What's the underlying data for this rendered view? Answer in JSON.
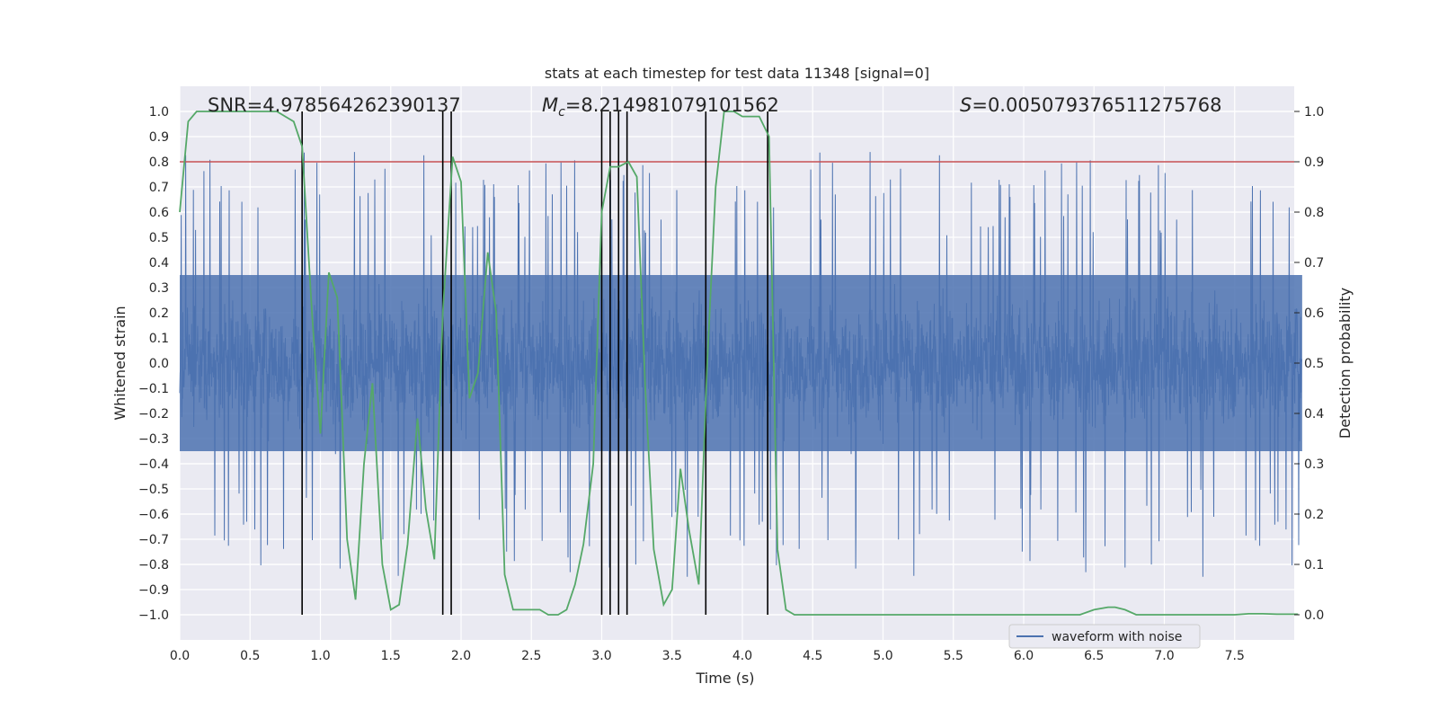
{
  "chart_data": {
    "type": "line",
    "title": "stats at each timestep for test data 11348 [signal=0]",
    "xlabel": "Time (s)",
    "ylabel_left": "Whitened strain",
    "ylabel_right": "Detection probability",
    "xlim": [
      0.0,
      8.0
    ],
    "ylim_left": [
      -1.1,
      1.1
    ],
    "ylim_right": [
      -0.05,
      1.05
    ],
    "x_ticks": [
      "0.0",
      "0.5",
      "1.0",
      "1.5",
      "2.0",
      "2.5",
      "3.0",
      "3.5",
      "4.0",
      "4.5",
      "5.0",
      "5.5",
      "6.0",
      "6.5",
      "7.0",
      "7.5"
    ],
    "y_left_ticks": [
      "1.0",
      "0.9",
      "0.8",
      "0.7",
      "0.6",
      "0.5",
      "0.4",
      "0.3",
      "0.2",
      "0.1",
      "0.0",
      "−0.1",
      "−0.2",
      "−0.3",
      "−0.4",
      "−0.5",
      "−0.6",
      "−0.7",
      "−0.8",
      "−0.9",
      "−1.0"
    ],
    "y_right_ticks": [
      "1.0",
      "0.9",
      "0.8",
      "0.7",
      "0.6",
      "0.5",
      "0.4",
      "0.3",
      "0.2",
      "0.1",
      "0.0"
    ],
    "annotations": {
      "snr": "SNR=4.978564262390137",
      "mc_symbol": "M",
      "mc_sub": "c",
      "mc_value": "=8.214981079101562",
      "s_symbol": "S",
      "s_value": "=0.005079376511275768"
    },
    "threshold": {
      "value": 0.9,
      "axis": "right",
      "color": "#c44e52"
    },
    "vertical_lines": [
      0.87,
      1.87,
      1.93,
      3.0,
      3.06,
      3.12,
      3.18,
      3.74,
      4.18
    ],
    "series": [
      {
        "name": "waveform with noise",
        "axis": "left",
        "color": "#4c72b0",
        "kind": "noise",
        "base_envelope": 0.35,
        "n_samples": 3200
      },
      {
        "name": "detection probability",
        "axis": "right",
        "color": "#55a868",
        "x": [
          0.0,
          0.06,
          0.12,
          0.19,
          0.25,
          0.31,
          0.37,
          0.44,
          0.5,
          0.56,
          0.62,
          0.69,
          0.75,
          0.81,
          0.87,
          0.94,
          1.0,
          1.06,
          1.12,
          1.19,
          1.25,
          1.31,
          1.37,
          1.44,
          1.5,
          1.56,
          1.62,
          1.69,
          1.75,
          1.81,
          1.87,
          1.94,
          2.0,
          2.06,
          2.12,
          2.19,
          2.25,
          2.31,
          2.37,
          2.44,
          2.5,
          2.56,
          2.62,
          2.69,
          2.75,
          2.81,
          2.87,
          2.94,
          3.0,
          3.06,
          3.12,
          3.19,
          3.25,
          3.31,
          3.37,
          3.44,
          3.5,
          3.56,
          3.62,
          3.69,
          3.75,
          3.81,
          3.87,
          3.94,
          4.0,
          4.06,
          4.12,
          4.19,
          4.25,
          4.31,
          4.37,
          4.5,
          4.75,
          5.0,
          5.25,
          5.5,
          5.75,
          6.0,
          6.25,
          6.4,
          6.5,
          6.6,
          6.65,
          6.72,
          6.8,
          6.9,
          7.0,
          7.25,
          7.5,
          7.6,
          7.7,
          7.8,
          7.95
        ],
        "values": [
          0.8,
          0.98,
          1.0,
          1.0,
          1.0,
          1.0,
          1.0,
          1.0,
          1.0,
          1.0,
          1.0,
          1.0,
          0.99,
          0.98,
          0.93,
          0.6,
          0.36,
          0.68,
          0.63,
          0.15,
          0.03,
          0.3,
          0.46,
          0.1,
          0.01,
          0.02,
          0.14,
          0.39,
          0.21,
          0.11,
          0.6,
          0.91,
          0.86,
          0.43,
          0.48,
          0.72,
          0.6,
          0.08,
          0.01,
          0.01,
          0.01,
          0.01,
          0.0,
          0.0,
          0.01,
          0.06,
          0.14,
          0.3,
          0.8,
          0.89,
          0.89,
          0.9,
          0.87,
          0.45,
          0.13,
          0.02,
          0.05,
          0.29,
          0.17,
          0.06,
          0.5,
          0.85,
          1.0,
          1.0,
          0.99,
          0.99,
          0.99,
          0.95,
          0.13,
          0.01,
          0.0,
          0.0,
          0.0,
          0.0,
          0.0,
          0.0,
          0.0,
          0.0,
          0.0,
          0.0,
          0.01,
          0.015,
          0.015,
          0.01,
          0.0,
          0.0,
          0.0,
          0.0,
          0.0,
          0.002,
          0.002,
          0.001,
          0.001
        ]
      }
    ],
    "legend": {
      "label": "waveform with noise",
      "location": "lower-right"
    }
  }
}
